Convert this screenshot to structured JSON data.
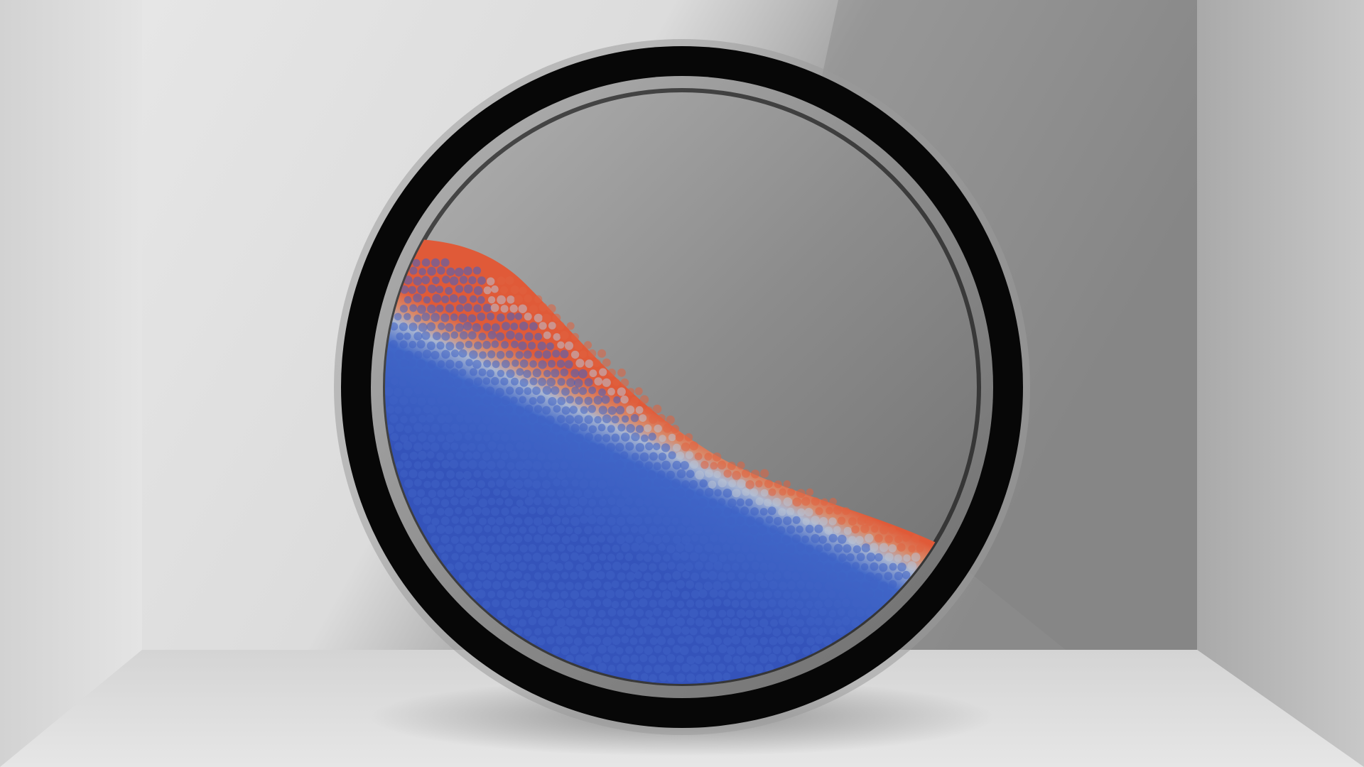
{
  "scene": {
    "background_color": "#d6d6d6",
    "wall_light_color": "#e6e6e6",
    "wall_shadow_color": "#8e8e8e",
    "floor_color": "#e2e2e2",
    "drum_rim_color": "#070707",
    "drum_glass_color": "#8a8a8a",
    "particle_colors": {
      "low_velocity": "#3f63c4",
      "mid_velocity": "#b9c2d4",
      "high_velocity": "#e0623f"
    },
    "fill_fraction": 0.52,
    "repose_angle_deg": 32
  }
}
